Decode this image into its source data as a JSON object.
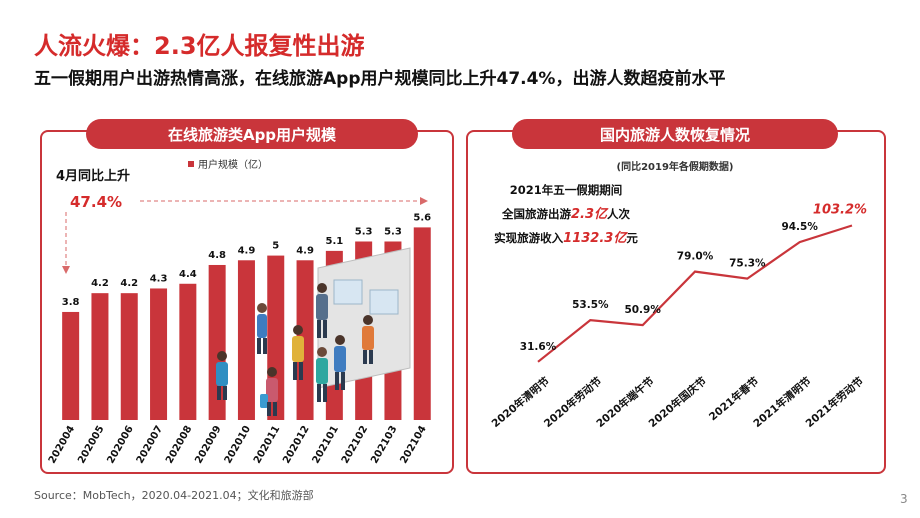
{
  "title": "人流火爆：2.3亿人报复性出游",
  "subtitle": "五一假期用户出游热情高涨，在线旅游App用户规模同比上升47.4%，出游人数超疫前水平",
  "source": "Source：MobTech，2020.04-2021.04；文化和旅游部",
  "page_number": "3",
  "colors": {
    "accent": "#c9353b",
    "title": "#d52b2b",
    "bar": "#c9353b",
    "line": "#c9353b"
  },
  "left_panel": {
    "header": "在线旅游类App用户规模",
    "annotation_label": "4月同比上升",
    "annotation_value": "47.4%"
  },
  "right_panel": {
    "header": "国内旅游人数恢复情况",
    "note": "(同比2019年各假期数据)",
    "callout_line1": "2021年五一假期期间",
    "callout_line2_prefix": "全国旅游出游",
    "callout_line2_value": "2.3亿",
    "callout_line2_suffix": "人次",
    "callout_line3_prefix": "实现旅游收入",
    "callout_line3_value": "1132.3亿",
    "callout_line3_suffix": "元"
  },
  "chart_data": [
    {
      "type": "bar",
      "title": "在线旅游类App用户规模",
      "legend": "用户规模（亿）",
      "categories": [
        "202004",
        "202005",
        "202006",
        "202007",
        "202008",
        "202009",
        "202010",
        "202011",
        "202012",
        "202101",
        "202102",
        "202103",
        "202104"
      ],
      "series": [
        {
          "name": "用户规模（亿）",
          "values": [
            3.8,
            4.2,
            4.2,
            4.3,
            4.4,
            4.8,
            4.9,
            5.0,
            4.9,
            5.1,
            5.3,
            5.3,
            5.6
          ]
        }
      ],
      "ylim": [
        1.5,
        5.8
      ],
      "grid": false
    },
    {
      "type": "line",
      "title": "国内旅游人数恢复情况",
      "categories": [
        "2020年清明节",
        "2020年劳动节",
        "2020年端午节",
        "2020年国庆节",
        "2021年春节",
        "2021年清明节",
        "2021年劳动节"
      ],
      "series": [
        {
          "name": "",
          "values": [
            31.6,
            53.5,
            50.9,
            79.0,
            75.3,
            94.5,
            103.2
          ]
        }
      ],
      "labels": [
        "31.6%",
        "53.5%",
        "50.9%",
        "79.0%",
        "75.3%",
        "94.5%",
        "103.2%"
      ],
      "ylim": [
        0,
        125
      ],
      "grid": false
    }
  ]
}
